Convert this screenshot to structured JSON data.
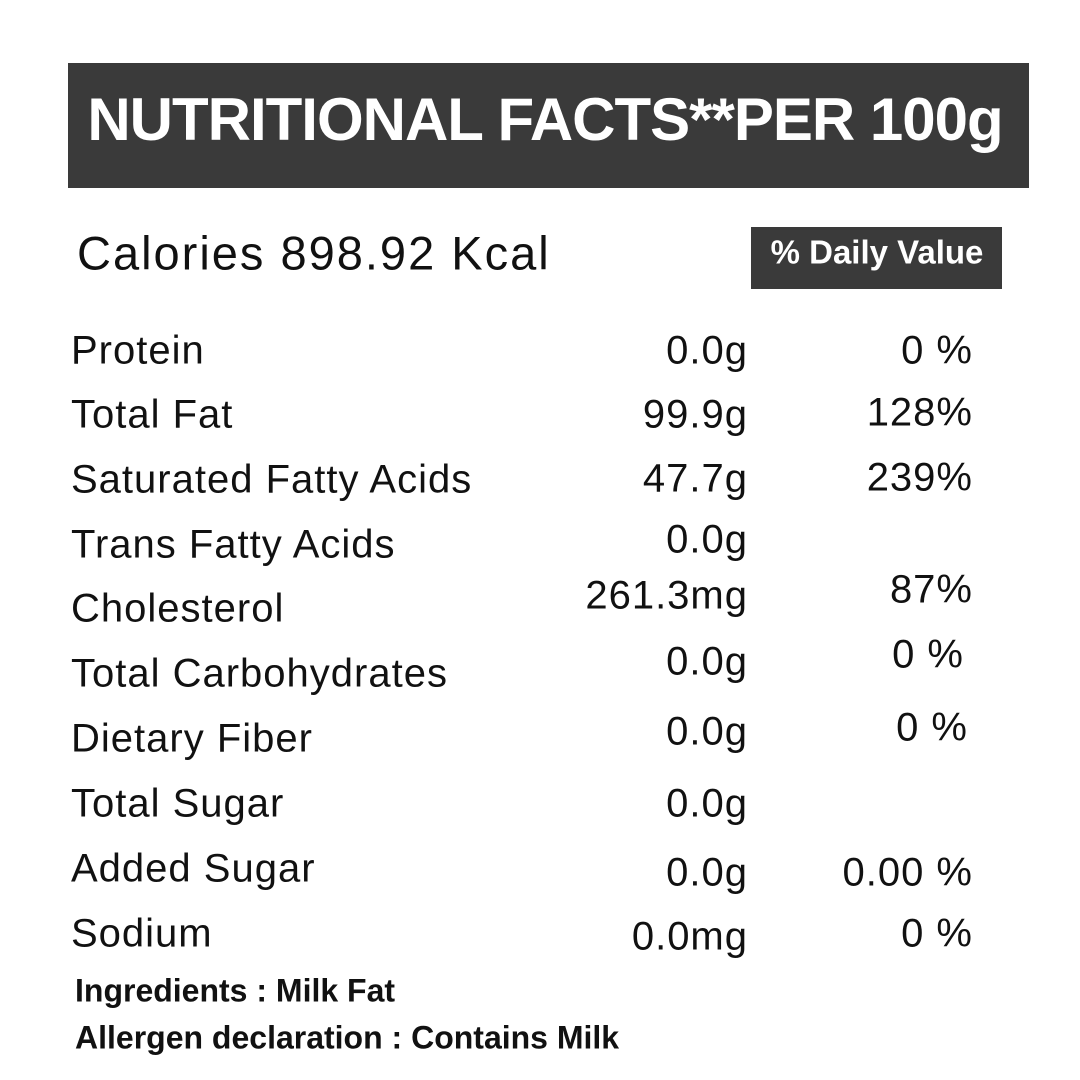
{
  "header": {
    "title": "NUTRITIONAL FACTS**PER 100g"
  },
  "calories": "Calories 898.92 Kcal",
  "dv_heading": "% Daily Value",
  "table": {
    "rows": [
      {
        "name": "Protein",
        "amount": "0.0g",
        "dv": "0 %"
      },
      {
        "name": "Total Fat",
        "amount": "99.9g",
        "dv": "128%"
      },
      {
        "name": "Saturated Fatty Acids",
        "amount": "47.7g",
        "dv": "239%"
      },
      {
        "name": "Trans Fatty Acids",
        "amount": "0.0g"
      },
      {
        "name": "Cholesterol",
        "amount": "261.3mg",
        "dv": "87%"
      },
      {
        "name": "Total Carbohydrates",
        "amount": "0.0g",
        "dv": "0 %"
      },
      {
        "name": "Dietary Fiber",
        "amount": "0.0g",
        "dv": "0 %"
      },
      {
        "name": "Total Sugar",
        "amount": "0.0g"
      },
      {
        "name": "Added Sugar",
        "amount": "0.0g",
        "dv": "0.00 %"
      },
      {
        "name": "Sodium",
        "amount": "0.0mg",
        "dv": "0 %"
      }
    ]
  },
  "footer": {
    "ingredients": "Ingredients : Milk Fat",
    "allergen": "Allergen declaration : Contains Milk"
  }
}
